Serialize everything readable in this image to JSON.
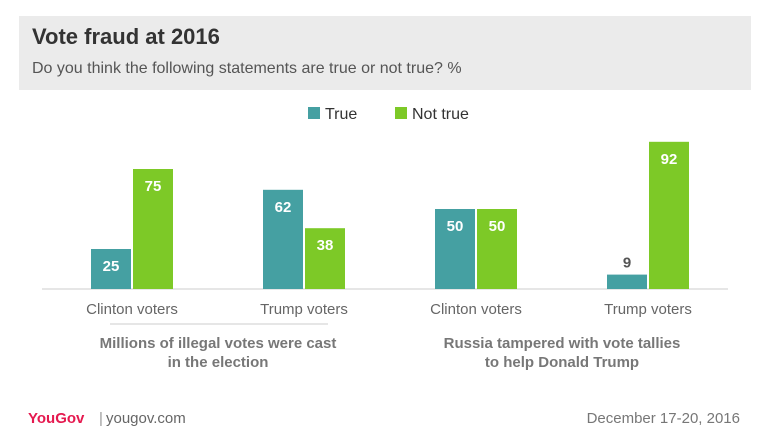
{
  "title": "Vote fraud at 2016",
  "subtitle": "Do you think the following statements are true or not true? %",
  "footer": {
    "brand": "YouGov",
    "separator": "|",
    "url": "yougov.com",
    "date": "December 17-20, 2016"
  },
  "colors": {
    "true": "#45a0a2",
    "not_true": "#7dc927",
    "axis": "#cccccc",
    "label_text": "#666666",
    "group_text": "#777777"
  },
  "chart_data": {
    "type": "bar",
    "legend_position": "top-center",
    "grid": false,
    "ylim": [
      0,
      100
    ],
    "categories": [
      "Clinton voters",
      "Trump voters",
      "Clinton voters",
      "Trump voters"
    ],
    "series": [
      {
        "name": "True",
        "values": [
          25,
          62,
          50,
          9
        ]
      },
      {
        "name": "Not true",
        "values": [
          75,
          38,
          50,
          92
        ]
      }
    ],
    "groups": [
      {
        "label_lines": [
          "Millions of illegal votes were cast",
          "in the election"
        ],
        "categories": [
          0,
          1
        ]
      },
      {
        "label_lines": [
          "Russia tampered with vote tallies",
          "to help Donald Trump"
        ],
        "categories": [
          2,
          3
        ]
      }
    ]
  }
}
